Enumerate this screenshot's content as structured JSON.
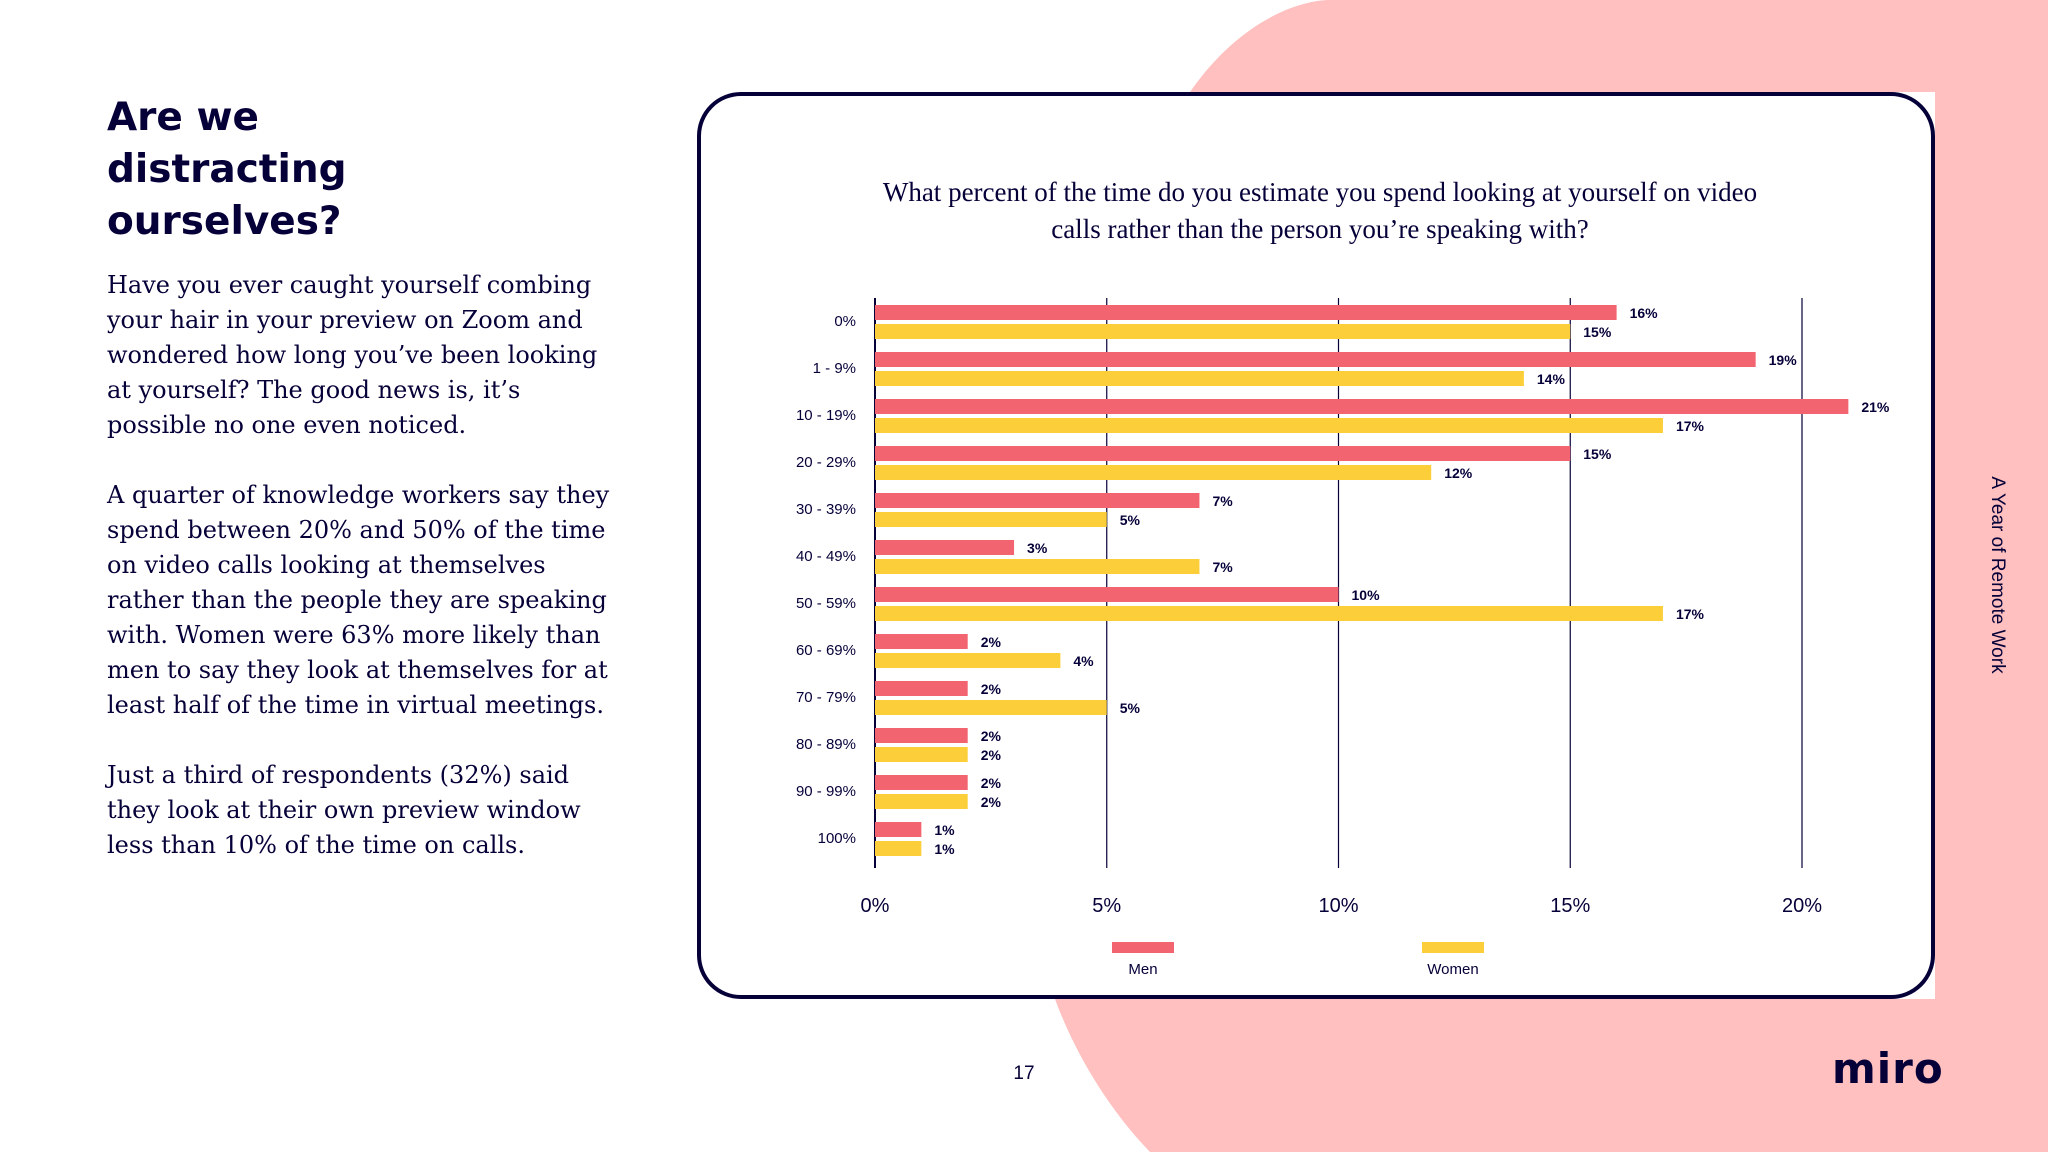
{
  "heading": [
    "Are we",
    "distracting",
    "ourselves?"
  ],
  "paragraphs": [
    "Have you ever caught yourself combing your hair in your preview on Zoom and wondered how long you’ve been looking at yourself? The good news is, it’s possible no one even noticed.",
    "A quarter of knowledge workers say they spend between 20% and 50% of the time on video calls looking at themselves rather than the people they are speaking with. Women were 63% more likely than men to say they look at themselves for at least half of the time in virtual meetings.",
    "Just a third of respondents (32%) said they look at their own preview window less than 10% of the time on calls."
  ],
  "chart_title": "What percent of the time do you estimate you spend looking at yourself on video calls rather than the person you’re speaking with?",
  "chart_data": {
    "type": "bar",
    "orientation": "horizontal",
    "title": "What percent of the time do you estimate you spend looking at yourself on video calls rather than the person you’re speaking with?",
    "categories": [
      "0%",
      "1 - 9%",
      "10 - 19%",
      "20 - 29%",
      "30 - 39%",
      "40 - 49%",
      "50 - 59%",
      "60 - 69%",
      "70 - 79%",
      "80 - 89%",
      "90 - 99%",
      "100%"
    ],
    "series": [
      {
        "name": "Men",
        "color": "#f2646f",
        "values": [
          16,
          19,
          21,
          15,
          7,
          3,
          10,
          2,
          2,
          2,
          2,
          1
        ],
        "labels": [
          "16%",
          "19%",
          "21%",
          "15%",
          "7%",
          "3%",
          "10%",
          "2%",
          "2%",
          "2%",
          "2%",
          "1%"
        ]
      },
      {
        "name": "Women",
        "color": "#fccf3a",
        "values": [
          15,
          14,
          17,
          12,
          5,
          7,
          17,
          4,
          5,
          2,
          2,
          1
        ],
        "labels": [
          "15%",
          "14%",
          "17%",
          "12%",
          "5%",
          "7%",
          "17%",
          "4%",
          "5%",
          "2%",
          "2%",
          "1%"
        ]
      }
    ],
    "x_ticks": [
      0,
      5,
      10,
      15,
      20
    ],
    "x_tick_labels": [
      "0%",
      "5%",
      "10%",
      "15%",
      "20%"
    ],
    "xlim": [
      0,
      20
    ],
    "grid": "vertical",
    "legend": "bottom"
  },
  "legend": {
    "men": "Men",
    "women": "Women"
  },
  "page_number": "17",
  "logo": "miro",
  "side_label": "A Year of Remote Work",
  "colors": {
    "ink": "#050038",
    "men": "#f2646f",
    "women": "#fccf3a",
    "background_shape": "#ffc0bf"
  }
}
